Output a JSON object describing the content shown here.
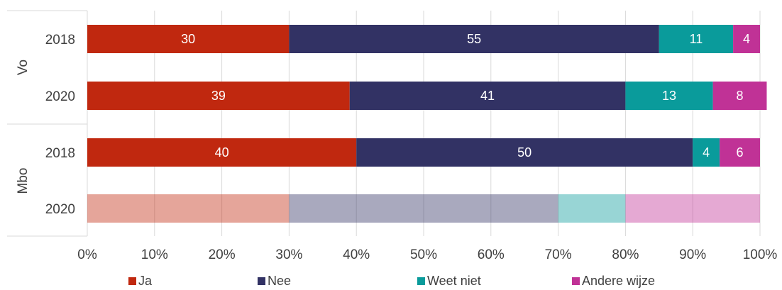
{
  "chart_data": {
    "type": "bar",
    "orientation": "horizontal",
    "stacked": "percent",
    "groups": [
      "Vo",
      "Mbo"
    ],
    "categories": [
      {
        "group": "Vo",
        "label": "2018"
      },
      {
        "group": "Vo",
        "label": "2020"
      },
      {
        "group": "Mbo",
        "label": "2018"
      },
      {
        "group": "Mbo",
        "label": "2020"
      }
    ],
    "series": [
      {
        "name": "Ja",
        "color": "#c0280f",
        "values": [
          30,
          39,
          40,
          30
        ],
        "labels": [
          "30",
          "39",
          "40",
          ""
        ]
      },
      {
        "name": "Nee",
        "color": "#323264",
        "values": [
          55,
          41,
          50,
          40
        ],
        "labels": [
          "55",
          "41",
          "50",
          ""
        ]
      },
      {
        "name": "Weet niet",
        "color": "#0a9b9b",
        "values": [
          11,
          13,
          4,
          10
        ],
        "labels": [
          "11",
          "13",
          "4",
          ""
        ]
      },
      {
        "name": "Andere wijze",
        "color": "#c03296",
        "values": [
          4,
          8,
          6,
          20
        ],
        "labels": [
          "4",
          "8",
          "6",
          ""
        ]
      }
    ],
    "faded_rows": [
      3
    ],
    "xlim": [
      0,
      100
    ],
    "x_ticks": [
      "0%",
      "10%",
      "20%",
      "30%",
      "40%",
      "50%",
      "60%",
      "70%",
      "80%",
      "90%",
      "100%"
    ],
    "grid": true,
    "legend_position": "bottom"
  }
}
